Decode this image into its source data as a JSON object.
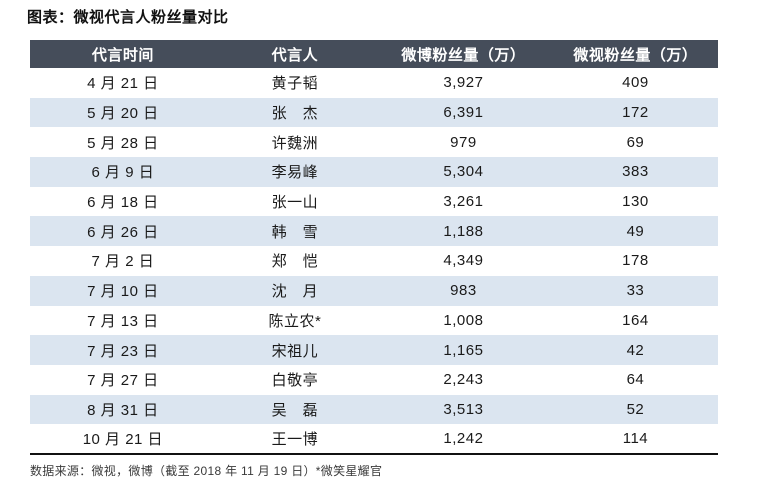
{
  "page": {
    "title": "图表：微视代言人粉丝量对比",
    "source_note": "数据来源：微视，微博（截至 2018 年 11 月 19 日）*微笑星耀官"
  },
  "colors": {
    "header_bg": "#454d5a",
    "header_text": "#ffffff",
    "alt_row_bg": "#dbe5f0",
    "body_text": "#1a1a1a",
    "bottom_rule": "#111111"
  },
  "table": {
    "columns": [
      "代言时间",
      "代言人",
      "微博粉丝量（万）",
      "微视粉丝量（万）"
    ],
    "rows": [
      {
        "date": "4 月 21 日",
        "name": "黄子韬",
        "weibo": "3,927",
        "weishi": "409"
      },
      {
        "date": "5 月 20 日",
        "name": "张　杰",
        "weibo": "6,391",
        "weishi": "172"
      },
      {
        "date": "5 月 28 日",
        "name": "许魏洲",
        "weibo": "979",
        "weishi": "69"
      },
      {
        "date": "6 月 9 日",
        "name": "李易峰",
        "weibo": "5,304",
        "weishi": "383"
      },
      {
        "date": "6 月 18 日",
        "name": "张一山",
        "weibo": "3,261",
        "weishi": "130"
      },
      {
        "date": "6 月 26 日",
        "name": "韩　雪",
        "weibo": "1,188",
        "weishi": "49"
      },
      {
        "date": "7 月 2 日",
        "name": "郑　恺",
        "weibo": "4,349",
        "weishi": "178"
      },
      {
        "date": "7 月 10 日",
        "name": "沈　月",
        "weibo": "983",
        "weishi": "33"
      },
      {
        "date": "7 月 13 日",
        "name": "陈立农*",
        "weibo": "1,008",
        "weishi": "164"
      },
      {
        "date": "7 月 23 日",
        "name": "宋祖儿",
        "weibo": "1,165",
        "weishi": "42"
      },
      {
        "date": "7 月 27 日",
        "name": "白敬亭",
        "weibo": "2,243",
        "weishi": "64"
      },
      {
        "date": "8 月 31 日",
        "name": "吴　磊",
        "weibo": "3,513",
        "weishi": "52"
      },
      {
        "date": "10 月 21 日",
        "name": "王一博",
        "weibo": "1,242",
        "weishi": "114"
      }
    ]
  },
  "chart_data": {
    "type": "table",
    "title": "图表：微视代言人粉丝量对比",
    "columns": [
      "代言时间",
      "代言人",
      "微博粉丝量（万）",
      "微视粉丝量（万）"
    ],
    "rows": [
      [
        "4 月 21 日",
        "黄子韬",
        3927,
        409
      ],
      [
        "5 月 20 日",
        "张杰",
        6391,
        172
      ],
      [
        "5 月 28 日",
        "许魏洲",
        979,
        69
      ],
      [
        "6 月 9 日",
        "李易峰",
        5304,
        383
      ],
      [
        "6 月 18 日",
        "张一山",
        3261,
        130
      ],
      [
        "6 月 26 日",
        "韩雪",
        1188,
        49
      ],
      [
        "7 月 2 日",
        "郑恺",
        4349,
        178
      ],
      [
        "7 月 10 日",
        "沈月",
        983,
        33
      ],
      [
        "7 月 13 日",
        "陈立农*",
        1008,
        164
      ],
      [
        "7 月 23 日",
        "宋祖儿",
        1165,
        42
      ],
      [
        "7 月 27 日",
        "白敬亭",
        2243,
        64
      ],
      [
        "8 月 31 日",
        "吴磊",
        3513,
        52
      ],
      [
        "10 月 21 日",
        "王一博",
        1242,
        114
      ]
    ],
    "note": "数据来源：微视，微博（截至 2018 年 11 月 19 日）*微笑星耀官",
    "layout": {
      "zebra_striping": true,
      "header_style": "dark",
      "alignment": "center"
    }
  }
}
